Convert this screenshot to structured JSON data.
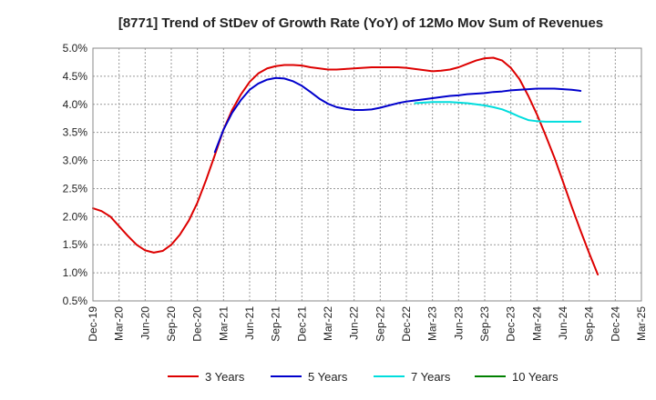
{
  "chart_data": {
    "type": "line",
    "title": "[8771]  Trend of StDev of Growth Rate (YoY) of 12Mo Mov Sum of Revenues",
    "xlabel": "",
    "ylabel": "",
    "ylim": [
      0.5,
      5.0
    ],
    "y_ticks": [
      0.5,
      1.0,
      1.5,
      2.0,
      2.5,
      3.0,
      3.5,
      4.0,
      4.5,
      5.0
    ],
    "y_tick_labels": [
      "0.5%",
      "1.0%",
      "1.5%",
      "2.0%",
      "2.5%",
      "3.0%",
      "3.5%",
      "4.0%",
      "4.5%",
      "5.0%"
    ],
    "x_tick_labels": [
      "Dec-19",
      "Mar-20",
      "Jun-20",
      "Sep-20",
      "Dec-20",
      "Mar-21",
      "Jun-21",
      "Sep-21",
      "Dec-21",
      "Mar-22",
      "Jun-22",
      "Sep-22",
      "Dec-22",
      "Mar-23",
      "Jun-23",
      "Sep-23",
      "Dec-23",
      "Mar-24",
      "Jun-24",
      "Sep-24",
      "Dec-24",
      "Mar-25"
    ],
    "grid": true,
    "legend_position": "bottom",
    "series": [
      {
        "name": "3 Years",
        "color": "#dd0000",
        "points": [
          [
            0,
            2.15
          ],
          [
            0.33,
            2.1
          ],
          [
            0.67,
            2.0
          ],
          [
            1,
            1.83
          ],
          [
            1.33,
            1.66
          ],
          [
            1.67,
            1.5
          ],
          [
            2,
            1.4
          ],
          [
            2.33,
            1.36
          ],
          [
            2.67,
            1.39
          ],
          [
            3,
            1.5
          ],
          [
            3.33,
            1.68
          ],
          [
            3.67,
            1.93
          ],
          [
            4,
            2.25
          ],
          [
            4.33,
            2.65
          ],
          [
            4.67,
            3.1
          ],
          [
            5,
            3.55
          ],
          [
            5.33,
            3.9
          ],
          [
            5.67,
            4.18
          ],
          [
            6,
            4.4
          ],
          [
            6.33,
            4.55
          ],
          [
            6.67,
            4.64
          ],
          [
            7,
            4.68
          ],
          [
            7.33,
            4.7
          ],
          [
            7.67,
            4.7
          ],
          [
            8,
            4.69
          ],
          [
            8.33,
            4.66
          ],
          [
            8.67,
            4.64
          ],
          [
            9,
            4.62
          ],
          [
            9.33,
            4.62
          ],
          [
            9.67,
            4.63
          ],
          [
            10,
            4.64
          ],
          [
            10.33,
            4.65
          ],
          [
            10.67,
            4.66
          ],
          [
            11,
            4.66
          ],
          [
            11.33,
            4.66
          ],
          [
            11.67,
            4.66
          ],
          [
            12,
            4.65
          ],
          [
            12.33,
            4.63
          ],
          [
            12.67,
            4.61
          ],
          [
            13,
            4.59
          ],
          [
            13.33,
            4.6
          ],
          [
            13.67,
            4.62
          ],
          [
            14,
            4.66
          ],
          [
            14.33,
            4.72
          ],
          [
            14.67,
            4.78
          ],
          [
            15,
            4.82
          ],
          [
            15.33,
            4.83
          ],
          [
            15.67,
            4.78
          ],
          [
            16,
            4.65
          ],
          [
            16.33,
            4.45
          ],
          [
            16.67,
            4.15
          ],
          [
            17,
            3.82
          ],
          [
            17.33,
            3.45
          ],
          [
            17.67,
            3.05
          ],
          [
            18,
            2.62
          ],
          [
            18.33,
            2.18
          ],
          [
            18.67,
            1.75
          ],
          [
            19,
            1.35
          ],
          [
            19.33,
            0.97
          ]
        ]
      },
      {
        "name": "5 Years",
        "color": "#0000cc",
        "points": [
          [
            4.67,
            3.15
          ],
          [
            5,
            3.55
          ],
          [
            5.33,
            3.85
          ],
          [
            5.67,
            4.08
          ],
          [
            6,
            4.26
          ],
          [
            6.33,
            4.37
          ],
          [
            6.67,
            4.44
          ],
          [
            7,
            4.47
          ],
          [
            7.33,
            4.46
          ],
          [
            7.67,
            4.41
          ],
          [
            8,
            4.33
          ],
          [
            8.33,
            4.22
          ],
          [
            8.67,
            4.1
          ],
          [
            9,
            4.01
          ],
          [
            9.33,
            3.95
          ],
          [
            9.67,
            3.92
          ],
          [
            10,
            3.9
          ],
          [
            10.33,
            3.9
          ],
          [
            10.67,
            3.91
          ],
          [
            11,
            3.94
          ],
          [
            11.33,
            3.98
          ],
          [
            11.67,
            4.02
          ],
          [
            12,
            4.05
          ],
          [
            12.33,
            4.07
          ],
          [
            12.67,
            4.09
          ],
          [
            13,
            4.11
          ],
          [
            13.33,
            4.13
          ],
          [
            13.67,
            4.15
          ],
          [
            14,
            4.16
          ],
          [
            14.33,
            4.18
          ],
          [
            14.67,
            4.19
          ],
          [
            15,
            4.2
          ],
          [
            15.33,
            4.22
          ],
          [
            15.67,
            4.23
          ],
          [
            16,
            4.25
          ],
          [
            16.33,
            4.26
          ],
          [
            16.67,
            4.27
          ],
          [
            17,
            4.28
          ],
          [
            17.33,
            4.28
          ],
          [
            17.67,
            4.28
          ],
          [
            18,
            4.27
          ],
          [
            18.33,
            4.26
          ],
          [
            18.67,
            4.24
          ]
        ]
      },
      {
        "name": "7 Years",
        "color": "#00dddd",
        "points": [
          [
            12.33,
            4.02
          ],
          [
            12.67,
            4.03
          ],
          [
            13,
            4.04
          ],
          [
            13.33,
            4.04
          ],
          [
            13.67,
            4.04
          ],
          [
            14,
            4.03
          ],
          [
            14.33,
            4.02
          ],
          [
            14.67,
            4.0
          ],
          [
            15,
            3.98
          ],
          [
            15.33,
            3.95
          ],
          [
            15.67,
            3.91
          ],
          [
            16,
            3.85
          ],
          [
            16.33,
            3.78
          ],
          [
            16.67,
            3.72
          ],
          [
            17,
            3.7
          ],
          [
            17.33,
            3.69
          ],
          [
            17.67,
            3.69
          ],
          [
            18,
            3.69
          ],
          [
            18.33,
            3.69
          ],
          [
            18.67,
            3.69
          ]
        ]
      },
      {
        "name": "10 Years",
        "color": "#008000",
        "points": []
      }
    ]
  }
}
